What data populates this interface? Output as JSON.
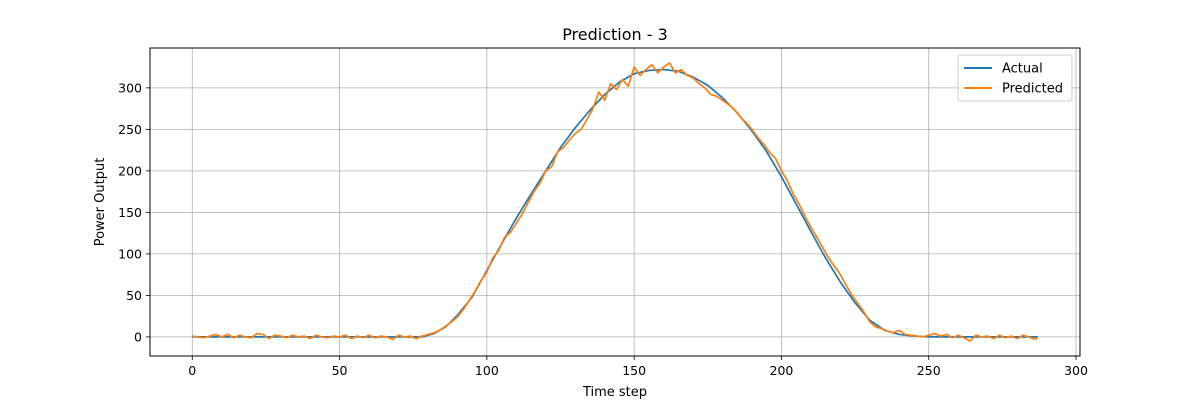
{
  "chart_data": {
    "type": "line",
    "title": "Prediction - 3",
    "xlabel": "Time step",
    "ylabel": "Power Output",
    "xlim": [
      -14.35,
      301.35
    ],
    "ylim": [
      -23,
      348
    ],
    "xticks": [
      0,
      50,
      100,
      150,
      200,
      250,
      300
    ],
    "yticks": [
      0,
      50,
      100,
      150,
      200,
      250,
      300
    ],
    "grid": true,
    "legend_position": "top-right",
    "x_range": [
      0,
      287
    ],
    "series": [
      {
        "name": "Actual",
        "color": "#1f77b4",
        "points": [
          [
            0,
            0
          ],
          [
            78,
            0
          ],
          [
            82,
            4
          ],
          [
            86,
            12
          ],
          [
            90,
            26
          ],
          [
            95,
            48
          ],
          [
            100,
            80
          ],
          [
            105,
            112
          ],
          [
            110,
            143
          ],
          [
            115,
            172
          ],
          [
            120,
            200
          ],
          [
            125,
            228
          ],
          [
            130,
            252
          ],
          [
            135,
            273
          ],
          [
            140,
            292
          ],
          [
            145,
            307
          ],
          [
            150,
            317
          ],
          [
            155,
            321
          ],
          [
            160,
            322
          ],
          [
            165,
            320
          ],
          [
            170,
            313
          ],
          [
            175,
            303
          ],
          [
            180,
            288
          ],
          [
            185,
            270
          ],
          [
            190,
            248
          ],
          [
            195,
            223
          ],
          [
            200,
            193
          ],
          [
            205,
            160
          ],
          [
            210,
            127
          ],
          [
            215,
            95
          ],
          [
            220,
            66
          ],
          [
            225,
            41
          ],
          [
            230,
            20
          ],
          [
            235,
            8
          ],
          [
            240,
            3
          ],
          [
            245,
            1
          ],
          [
            250,
            0
          ],
          [
            287,
            0
          ]
        ]
      },
      {
        "name": "Predicted",
        "color": "#ff7f0e",
        "points": [
          [
            0,
            1
          ],
          [
            2,
            0
          ],
          [
            4,
            -1
          ],
          [
            6,
            1
          ],
          [
            8,
            3
          ],
          [
            10,
            0
          ],
          [
            12,
            3
          ],
          [
            14,
            -1
          ],
          [
            16,
            2
          ],
          [
            18,
            0
          ],
          [
            20,
            -1
          ],
          [
            22,
            4
          ],
          [
            24,
            3
          ],
          [
            26,
            -2
          ],
          [
            28,
            2
          ],
          [
            30,
            1
          ],
          [
            32,
            -1
          ],
          [
            34,
            2
          ],
          [
            36,
            0
          ],
          [
            38,
            1
          ],
          [
            40,
            -2
          ],
          [
            42,
            2
          ],
          [
            44,
            0
          ],
          [
            46,
            -1
          ],
          [
            48,
            1
          ],
          [
            50,
            0
          ],
          [
            52,
            2
          ],
          [
            54,
            -2
          ],
          [
            56,
            1
          ],
          [
            58,
            -1
          ],
          [
            60,
            2
          ],
          [
            62,
            -1
          ],
          [
            64,
            1
          ],
          [
            66,
            0
          ],
          [
            68,
            -3
          ],
          [
            70,
            2
          ],
          [
            72,
            0
          ],
          [
            74,
            1
          ],
          [
            76,
            -2
          ],
          [
            78,
            1
          ],
          [
            80,
            3
          ],
          [
            82,
            5
          ],
          [
            84,
            8
          ],
          [
            86,
            13
          ],
          [
            88,
            18
          ],
          [
            90,
            24
          ],
          [
            92,
            33
          ],
          [
            94,
            44
          ],
          [
            96,
            55
          ],
          [
            98,
            68
          ],
          [
            100,
            78
          ],
          [
            102,
            95
          ],
          [
            104,
            104
          ],
          [
            106,
            120
          ],
          [
            108,
            126
          ],
          [
            110,
            137
          ],
          [
            112,
            148
          ],
          [
            114,
            162
          ],
          [
            116,
            175
          ],
          [
            118,
            185
          ],
          [
            120,
            200
          ],
          [
            122,
            205
          ],
          [
            124,
            223
          ],
          [
            126,
            228
          ],
          [
            128,
            237
          ],
          [
            130,
            245
          ],
          [
            132,
            250
          ],
          [
            134,
            262
          ],
          [
            136,
            275
          ],
          [
            138,
            295
          ],
          [
            140,
            285
          ],
          [
            142,
            305
          ],
          [
            144,
            298
          ],
          [
            146,
            310
          ],
          [
            148,
            302
          ],
          [
            150,
            325
          ],
          [
            152,
            315
          ],
          [
            154,
            322
          ],
          [
            156,
            328
          ],
          [
            158,
            318
          ],
          [
            160,
            325
          ],
          [
            162,
            330
          ],
          [
            164,
            318
          ],
          [
            166,
            322
          ],
          [
            168,
            315
          ],
          [
            170,
            312
          ],
          [
            172,
            305
          ],
          [
            174,
            300
          ],
          [
            176,
            292
          ],
          [
            178,
            290
          ],
          [
            180,
            285
          ],
          [
            182,
            280
          ],
          [
            184,
            274
          ],
          [
            186,
            265
          ],
          [
            188,
            258
          ],
          [
            190,
            250
          ],
          [
            192,
            240
          ],
          [
            194,
            232
          ],
          [
            196,
            222
          ],
          [
            198,
            215
          ],
          [
            200,
            200
          ],
          [
            202,
            188
          ],
          [
            204,
            172
          ],
          [
            206,
            160
          ],
          [
            208,
            145
          ],
          [
            210,
            132
          ],
          [
            212,
            120
          ],
          [
            214,
            108
          ],
          [
            216,
            95
          ],
          [
            218,
            85
          ],
          [
            220,
            75
          ],
          [
            222,
            62
          ],
          [
            224,
            50
          ],
          [
            226,
            40
          ],
          [
            228,
            30
          ],
          [
            230,
            18
          ],
          [
            232,
            12
          ],
          [
            234,
            10
          ],
          [
            236,
            7
          ],
          [
            238,
            5
          ],
          [
            240,
            8
          ],
          [
            242,
            3
          ],
          [
            244,
            2
          ],
          [
            246,
            1
          ],
          [
            248,
            0
          ],
          [
            250,
            2
          ],
          [
            252,
            4
          ],
          [
            254,
            1
          ],
          [
            256,
            3
          ],
          [
            258,
            -1
          ],
          [
            260,
            2
          ],
          [
            262,
            -1
          ],
          [
            264,
            -5
          ],
          [
            266,
            2
          ],
          [
            268,
            0
          ],
          [
            270,
            1
          ],
          [
            272,
            -2
          ],
          [
            274,
            2
          ],
          [
            276,
            -1
          ],
          [
            278,
            1
          ],
          [
            280,
            -2
          ],
          [
            282,
            2
          ],
          [
            284,
            0
          ],
          [
            286,
            -3
          ],
          [
            287,
            -1
          ]
        ]
      }
    ]
  }
}
